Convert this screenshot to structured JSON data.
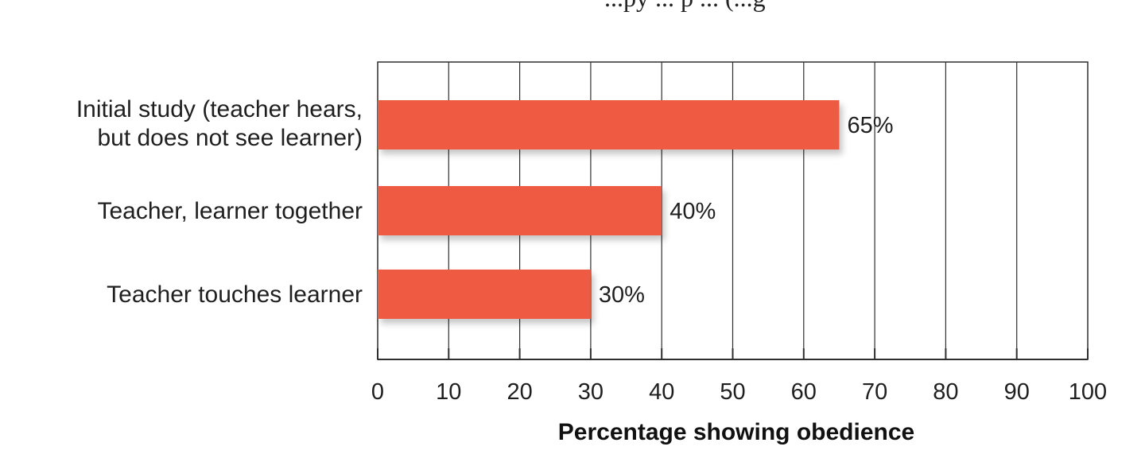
{
  "header_fragment": "...py ... p ... (...g",
  "chart_data": {
    "type": "bar",
    "orientation": "horizontal",
    "categories": [
      [
        "Initial study (teacher hears,",
        "but does not see learner)"
      ],
      [
        "Teacher, learner together"
      ],
      [
        "Teacher touches learner"
      ]
    ],
    "values": [
      65,
      40,
      30
    ],
    "value_labels": [
      "65%",
      "40%",
      "30%"
    ],
    "xlabel": "Percentage showing obedience",
    "ylabel": "",
    "xlim": [
      0,
      100
    ],
    "xticks": [
      0,
      10,
      20,
      30,
      40,
      50,
      60,
      70,
      80,
      90,
      100
    ],
    "xtick_labels": [
      "0",
      "10",
      "20",
      "30",
      "40",
      "50",
      "60",
      "70",
      "80",
      "90",
      "100"
    ],
    "grid": true,
    "legend": "none",
    "bar_color": "#ee5a43",
    "grid_color": "#2f2f2f"
  }
}
